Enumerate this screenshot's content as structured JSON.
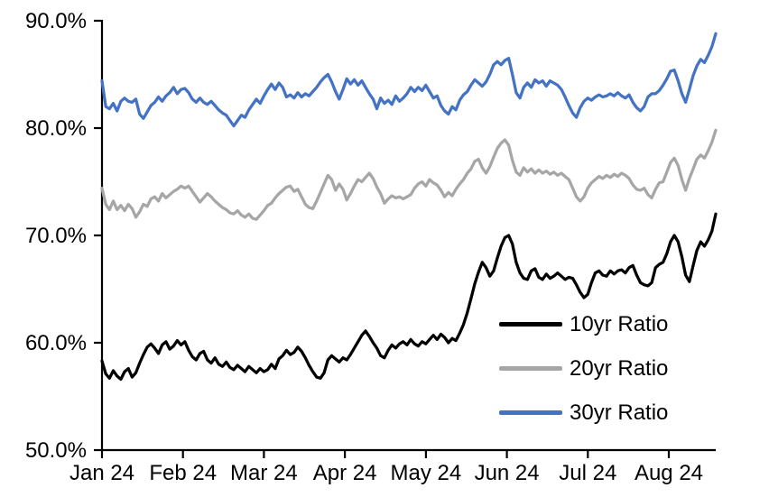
{
  "chart_data": {
    "type": "line",
    "title": "",
    "grid": false,
    "background": "#ffffff",
    "y_axis": {
      "unit": "%",
      "min": 50,
      "max": 90,
      "tick_step": 10,
      "tick_labels_top_to_bottom": [
        "90.0%",
        "80.0%",
        "70.0%",
        "60.0%",
        "50.0%"
      ]
    },
    "x_axis": {
      "tick_labels": [
        "Jan 24",
        "Feb 24",
        "Mar 24",
        "Apr 24",
        "May 24",
        "Jun 24",
        "Jul 24",
        "Aug 24"
      ],
      "note_range": "daily points from Jan 24 through mid-Aug 24"
    },
    "legend": [
      {
        "label": "10yr Ratio",
        "color": "#000000"
      },
      {
        "label": "20yr Ratio",
        "color": "#A6A6A6"
      },
      {
        "label": "30yr Ratio",
        "color": "#4472C4"
      }
    ],
    "legend_position": "inside lower right",
    "series": [
      {
        "name": "10yr Ratio",
        "color": "#000000",
        "values": [
          58.3,
          57.1,
          56.7,
          57.4,
          56.9,
          56.6,
          57.3,
          57.6,
          56.8,
          57.2,
          58.1,
          58.9,
          59.6,
          59.9,
          59.5,
          59.0,
          59.8,
          60.1,
          59.4,
          59.7,
          60.2,
          59.8,
          60.1,
          59.3,
          58.7,
          58.4,
          59.0,
          59.2,
          58.4,
          58.1,
          58.6,
          58.0,
          57.8,
          58.2,
          57.7,
          57.5,
          57.9,
          57.6,
          57.3,
          57.8,
          57.5,
          57.2,
          57.6,
          57.3,
          57.5,
          58.0,
          57.6,
          58.5,
          58.8,
          59.3,
          58.9,
          59.1,
          59.6,
          59.2,
          58.6,
          57.9,
          57.3,
          56.8,
          56.7,
          57.2,
          58.4,
          58.8,
          58.5,
          58.2,
          58.6,
          58.4,
          58.9,
          59.5,
          60.1,
          60.7,
          61.1,
          60.6,
          60.0,
          59.5,
          58.8,
          58.6,
          59.3,
          59.8,
          59.5,
          59.9,
          60.1,
          59.8,
          60.3,
          59.9,
          59.7,
          60.1,
          59.9,
          60.3,
          60.7,
          60.3,
          60.8,
          60.5,
          60.0,
          60.4,
          60.2,
          60.9,
          61.7,
          62.8,
          64.1,
          65.5,
          66.6,
          67.5,
          67.0,
          66.2,
          66.7,
          67.9,
          69.0,
          69.8,
          70.0,
          69.2,
          67.5,
          66.5,
          66.0,
          65.9,
          66.7,
          66.9,
          66.1,
          65.9,
          66.4,
          66.0,
          66.2,
          66.5,
          66.2,
          65.9,
          66.1,
          66.0,
          65.4,
          64.7,
          64.2,
          64.5,
          65.6,
          66.5,
          66.7,
          66.3,
          66.2,
          66.7,
          66.4,
          66.7,
          66.8,
          66.5,
          67.0,
          67.2,
          66.3,
          65.6,
          65.4,
          65.3,
          65.6,
          67.0,
          67.3,
          67.5,
          68.3,
          69.4,
          70.0,
          69.4,
          68.0,
          66.3,
          65.7,
          67.2,
          68.6,
          69.4,
          69.0,
          69.6,
          70.4,
          72.0
        ]
      },
      {
        "name": "20yr Ratio",
        "color": "#A6A6A6",
        "values": [
          74.4,
          72.9,
          72.4,
          73.2,
          72.4,
          72.8,
          72.3,
          72.9,
          72.5,
          71.7,
          72.2,
          72.9,
          72.7,
          73.4,
          73.6,
          73.2,
          73.9,
          73.5,
          73.8,
          74.1,
          74.3,
          74.6,
          74.4,
          74.6,
          74.1,
          73.6,
          73.1,
          73.5,
          73.9,
          73.6,
          73.2,
          72.9,
          72.6,
          72.4,
          72.1,
          72.0,
          72.3,
          71.9,
          71.7,
          72.0,
          71.6,
          71.5,
          71.9,
          72.3,
          72.8,
          73.0,
          73.5,
          73.9,
          74.2,
          74.5,
          74.6,
          74.1,
          74.3,
          73.6,
          72.9,
          72.6,
          72.5,
          73.2,
          74.0,
          74.8,
          75.6,
          75.2,
          74.2,
          74.8,
          74.3,
          73.3,
          73.9,
          74.6,
          75.2,
          75.0,
          75.4,
          75.8,
          75.3,
          74.5,
          73.9,
          73.0,
          73.4,
          73.7,
          73.5,
          73.6,
          73.4,
          73.6,
          73.8,
          74.4,
          74.8,
          75.0,
          74.6,
          75.2,
          74.9,
          74.7,
          74.2,
          73.6,
          74.0,
          73.7,
          74.3,
          74.8,
          75.2,
          75.8,
          76.2,
          76.9,
          77.1,
          76.3,
          75.8,
          76.4,
          77.3,
          78.1,
          78.6,
          78.9,
          78.4,
          77.0,
          75.9,
          75.6,
          76.3,
          75.9,
          76.2,
          75.8,
          76.1,
          75.8,
          76.0,
          75.7,
          75.9,
          75.6,
          75.8,
          75.5,
          75.2,
          74.4,
          73.6,
          73.2,
          73.6,
          74.4,
          74.9,
          75.2,
          75.5,
          75.3,
          75.6,
          75.4,
          75.7,
          75.5,
          75.8,
          75.6,
          75.3,
          74.7,
          74.3,
          74.2,
          74.4,
          73.8,
          73.5,
          74.3,
          74.9,
          75.0,
          75.9,
          76.8,
          77.2,
          76.5,
          75.2,
          74.2,
          75.3,
          76.2,
          77.1,
          77.5,
          77.2,
          77.9,
          78.7,
          79.8
        ]
      },
      {
        "name": "30yr Ratio",
        "color": "#4472C4",
        "values": [
          84.4,
          82.0,
          81.8,
          82.3,
          81.6,
          82.5,
          82.8,
          82.5,
          82.4,
          82.7,
          81.3,
          80.9,
          81.5,
          82.1,
          82.4,
          82.9,
          82.5,
          83.0,
          83.3,
          83.8,
          83.2,
          83.6,
          83.7,
          83.3,
          82.7,
          82.4,
          82.8,
          82.4,
          82.2,
          82.5,
          82.1,
          81.7,
          81.4,
          81.2,
          80.7,
          80.2,
          80.7,
          81.2,
          81.0,
          81.7,
          82.2,
          82.7,
          82.3,
          83.0,
          83.6,
          84.1,
          83.6,
          84.2,
          83.8,
          82.9,
          83.1,
          82.8,
          83.3,
          82.9,
          83.2,
          83.0,
          83.4,
          83.8,
          84.3,
          84.7,
          85.0,
          84.3,
          83.4,
          82.7,
          83.6,
          84.6,
          84.1,
          84.5,
          84.0,
          84.4,
          83.8,
          83.2,
          82.7,
          81.8,
          82.8,
          82.3,
          82.6,
          82.2,
          83.0,
          82.5,
          82.8,
          83.2,
          83.8,
          83.4,
          83.8,
          83.5,
          84.0,
          83.4,
          82.8,
          83.0,
          82.1,
          81.6,
          81.3,
          82.0,
          81.7,
          82.6,
          83.1,
          83.4,
          84.0,
          84.5,
          84.2,
          83.9,
          84.3,
          85.0,
          85.9,
          86.2,
          85.9,
          86.3,
          86.5,
          85.0,
          83.3,
          82.8,
          83.8,
          84.2,
          83.8,
          84.5,
          84.2,
          84.4,
          83.9,
          84.4,
          84.2,
          84.0,
          83.6,
          82.9,
          82.1,
          81.4,
          81.0,
          81.9,
          82.5,
          82.8,
          82.6,
          82.9,
          83.1,
          82.9,
          83.0,
          83.2,
          83.0,
          83.3,
          83.0,
          82.8,
          83.1,
          82.4,
          81.9,
          81.6,
          82.0,
          82.9,
          83.2,
          83.2,
          83.5,
          84.0,
          84.6,
          85.3,
          85.4,
          84.4,
          83.2,
          82.4,
          83.6,
          84.9,
          85.8,
          86.4,
          86.1,
          86.8,
          87.6,
          88.8
        ]
      }
    ]
  }
}
